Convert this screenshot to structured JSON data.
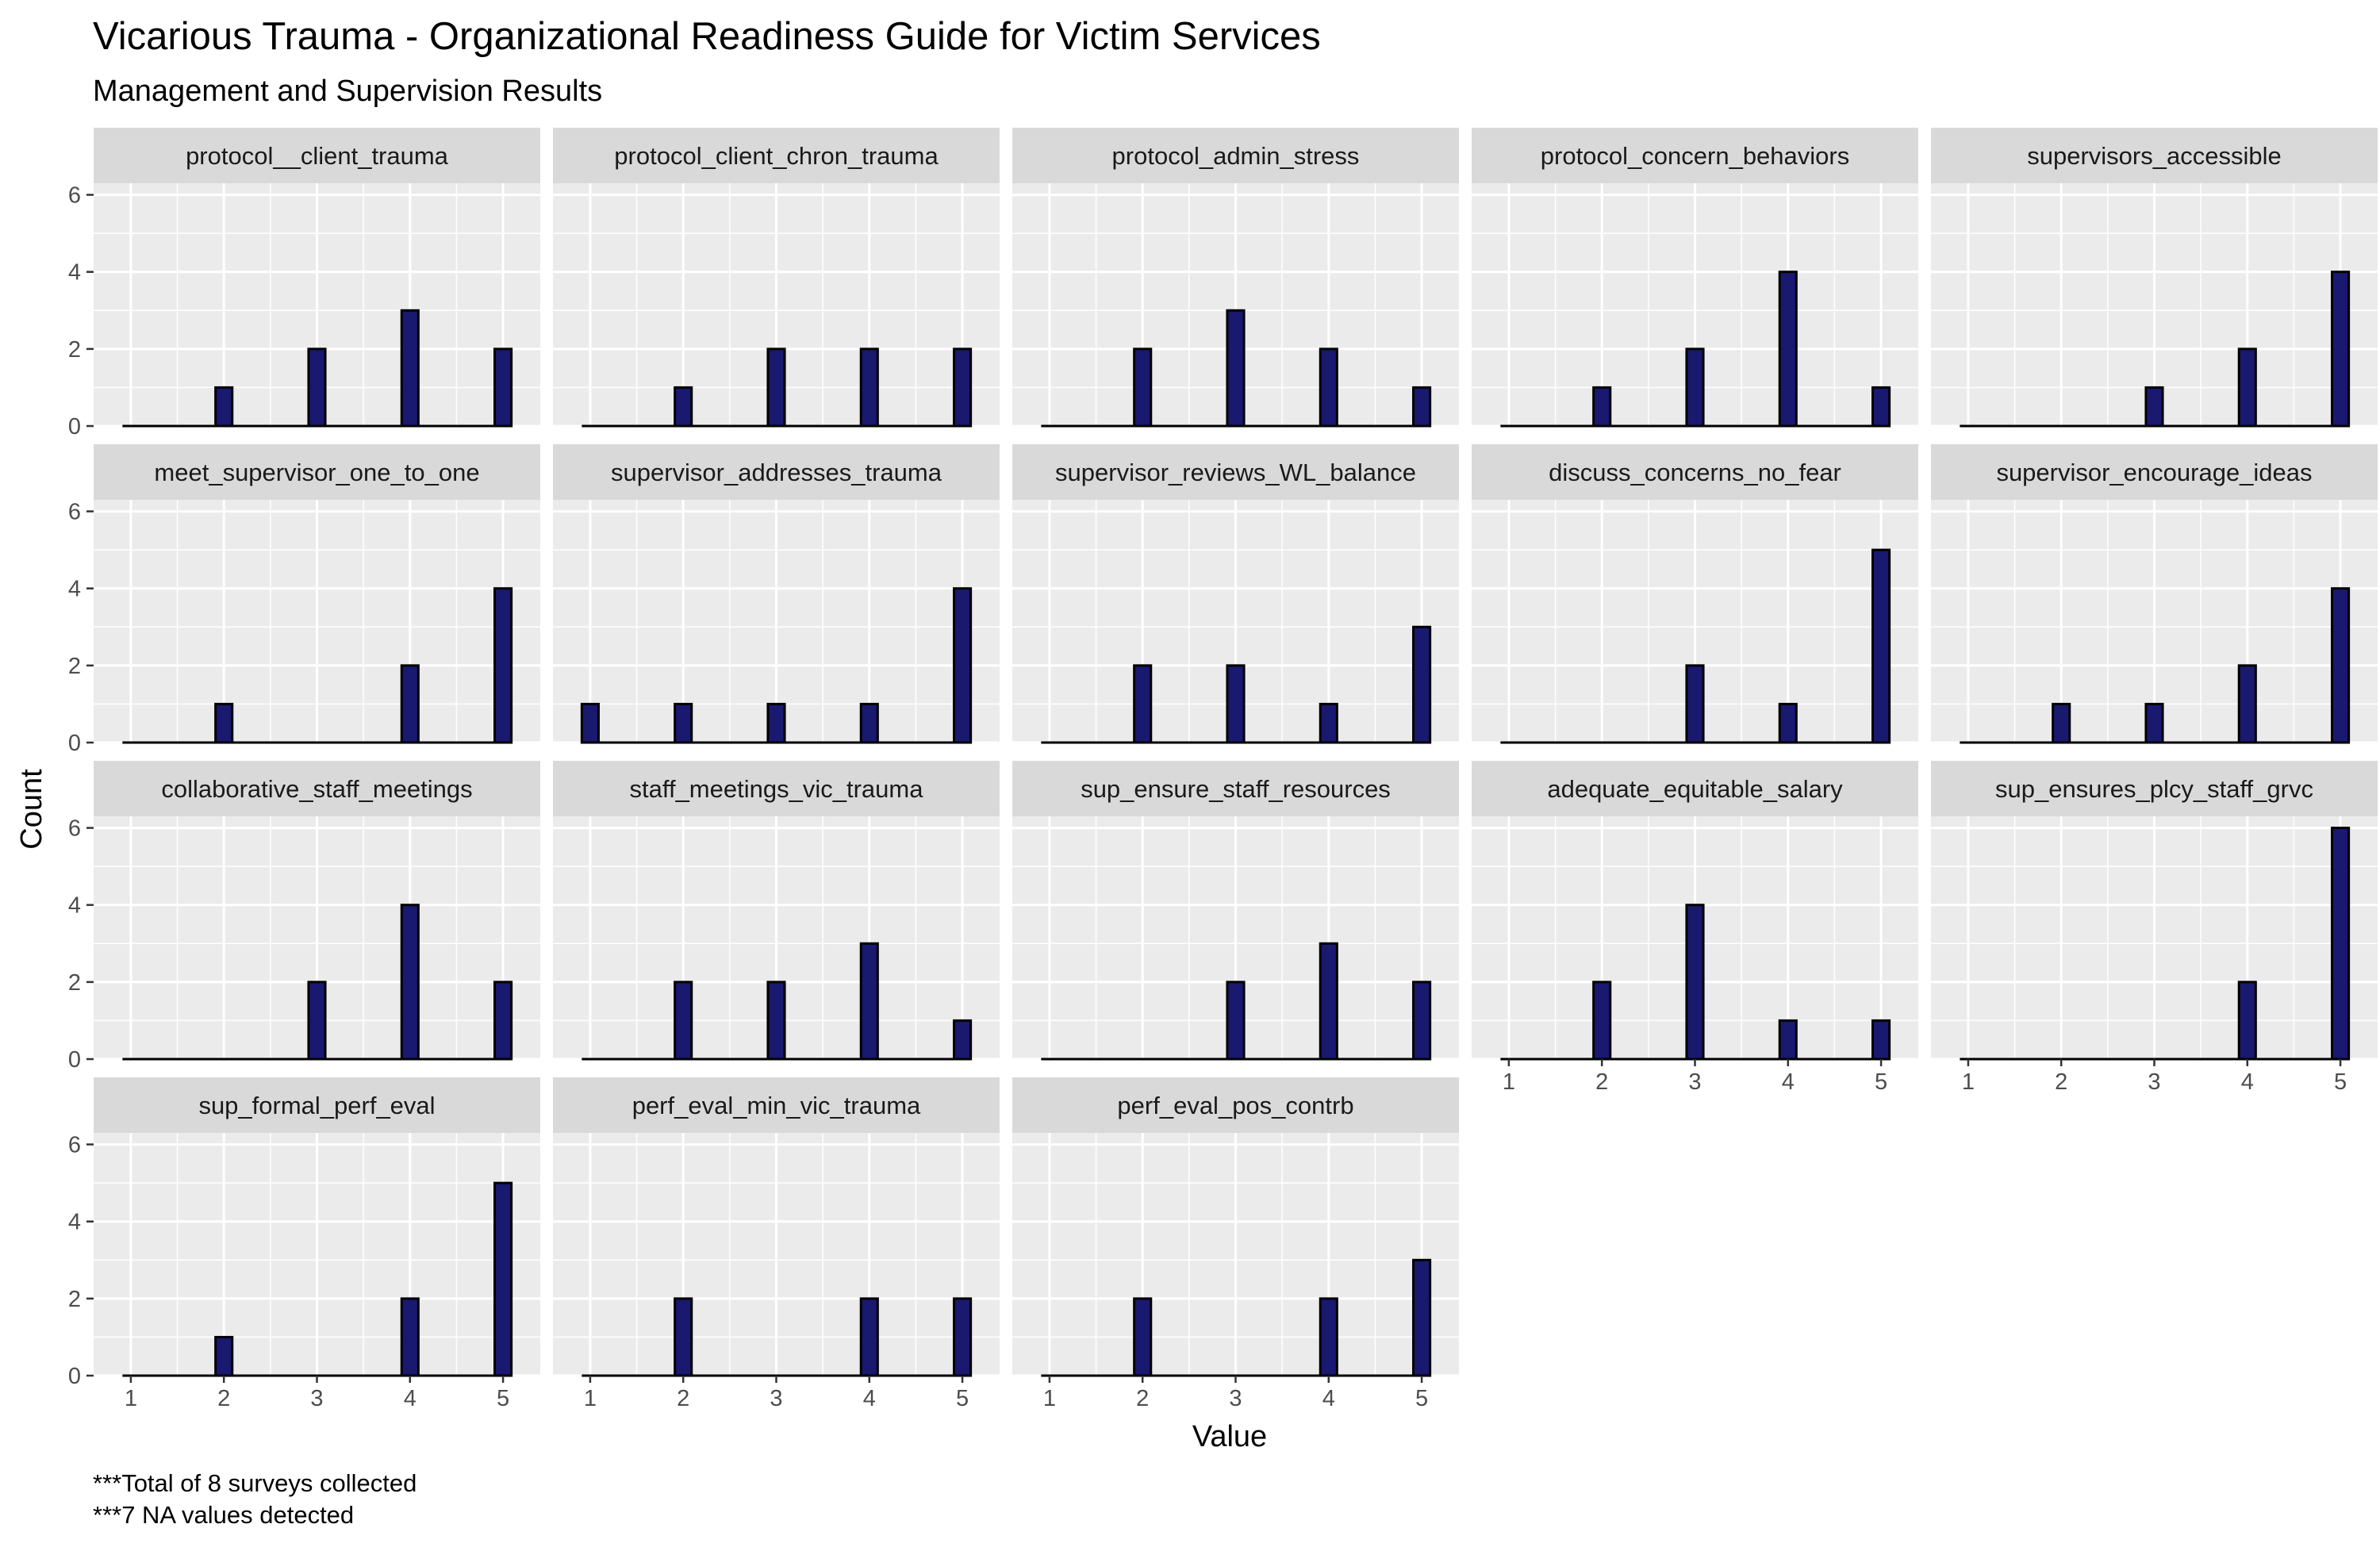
{
  "chart_data": {
    "type": "bar",
    "title": "Vicarious Trauma - Organizational Readiness Guide for Victim Services",
    "subtitle": "Management and Supervision Results",
    "xlabel": "Value",
    "ylabel": "Count",
    "x": [
      1,
      2,
      3,
      4,
      5
    ],
    "xticks": [
      "1",
      "2",
      "3",
      "4",
      "5"
    ],
    "ylim": [
      0,
      6.3
    ],
    "yticks": [
      "0",
      "2",
      "4",
      "6"
    ],
    "ytick_values": [
      0,
      2,
      4,
      6
    ],
    "grid": true,
    "bar_fill": "#191970",
    "bar_outline": "#000000",
    "panel_background": "#ebebeb",
    "strip_background": "#d9d9d9",
    "facets": [
      {
        "name": "protocol__client_trauma",
        "values": [
          0,
          1,
          2,
          3,
          2
        ]
      },
      {
        "name": "protocol_client_chron_trauma",
        "values": [
          0,
          1,
          2,
          2,
          2
        ]
      },
      {
        "name": "protocol_admin_stress",
        "values": [
          0,
          2,
          3,
          2,
          1
        ]
      },
      {
        "name": "protocol_concern_behaviors",
        "values": [
          0,
          1,
          2,
          4,
          1
        ]
      },
      {
        "name": "supervisors_accessible",
        "values": [
          0,
          0,
          1,
          2,
          4
        ]
      },
      {
        "name": "meet_supervisor_one_to_one",
        "values": [
          0,
          1,
          0,
          2,
          4
        ]
      },
      {
        "name": "supervisor_addresses_trauma",
        "values": [
          1,
          1,
          1,
          1,
          4
        ]
      },
      {
        "name": "supervisor_reviews_WL_balance",
        "values": [
          0,
          2,
          2,
          1,
          3
        ]
      },
      {
        "name": "discuss_concerns_no_fear",
        "values": [
          0,
          0,
          2,
          1,
          5
        ]
      },
      {
        "name": "supervisor_encourage_ideas",
        "values": [
          0,
          1,
          1,
          2,
          4
        ]
      },
      {
        "name": "collaborative_staff_meetings",
        "values": [
          0,
          0,
          2,
          4,
          2
        ]
      },
      {
        "name": "staff_meetings_vic_trauma",
        "values": [
          0,
          2,
          2,
          3,
          1
        ]
      },
      {
        "name": "sup_ensure_staff_resources",
        "values": [
          0,
          0,
          2,
          3,
          2
        ]
      },
      {
        "name": "adequate_equitable_salary",
        "values": [
          0,
          2,
          4,
          1,
          1
        ]
      },
      {
        "name": "sup_ensures_plcy_staff_grvc",
        "values": [
          0,
          0,
          0,
          2,
          6
        ]
      },
      {
        "name": "sup_formal_perf_eval",
        "values": [
          0,
          1,
          0,
          2,
          5
        ]
      },
      {
        "name": "perf_eval_min_vic_trauma",
        "values": [
          0,
          2,
          0,
          2,
          2
        ]
      },
      {
        "name": "perf_eval_pos_contrb",
        "values": [
          0,
          2,
          0,
          2,
          3
        ]
      }
    ],
    "captions": [
      "***Total of 8 surveys collected",
      "***7 NA values detected"
    ]
  }
}
